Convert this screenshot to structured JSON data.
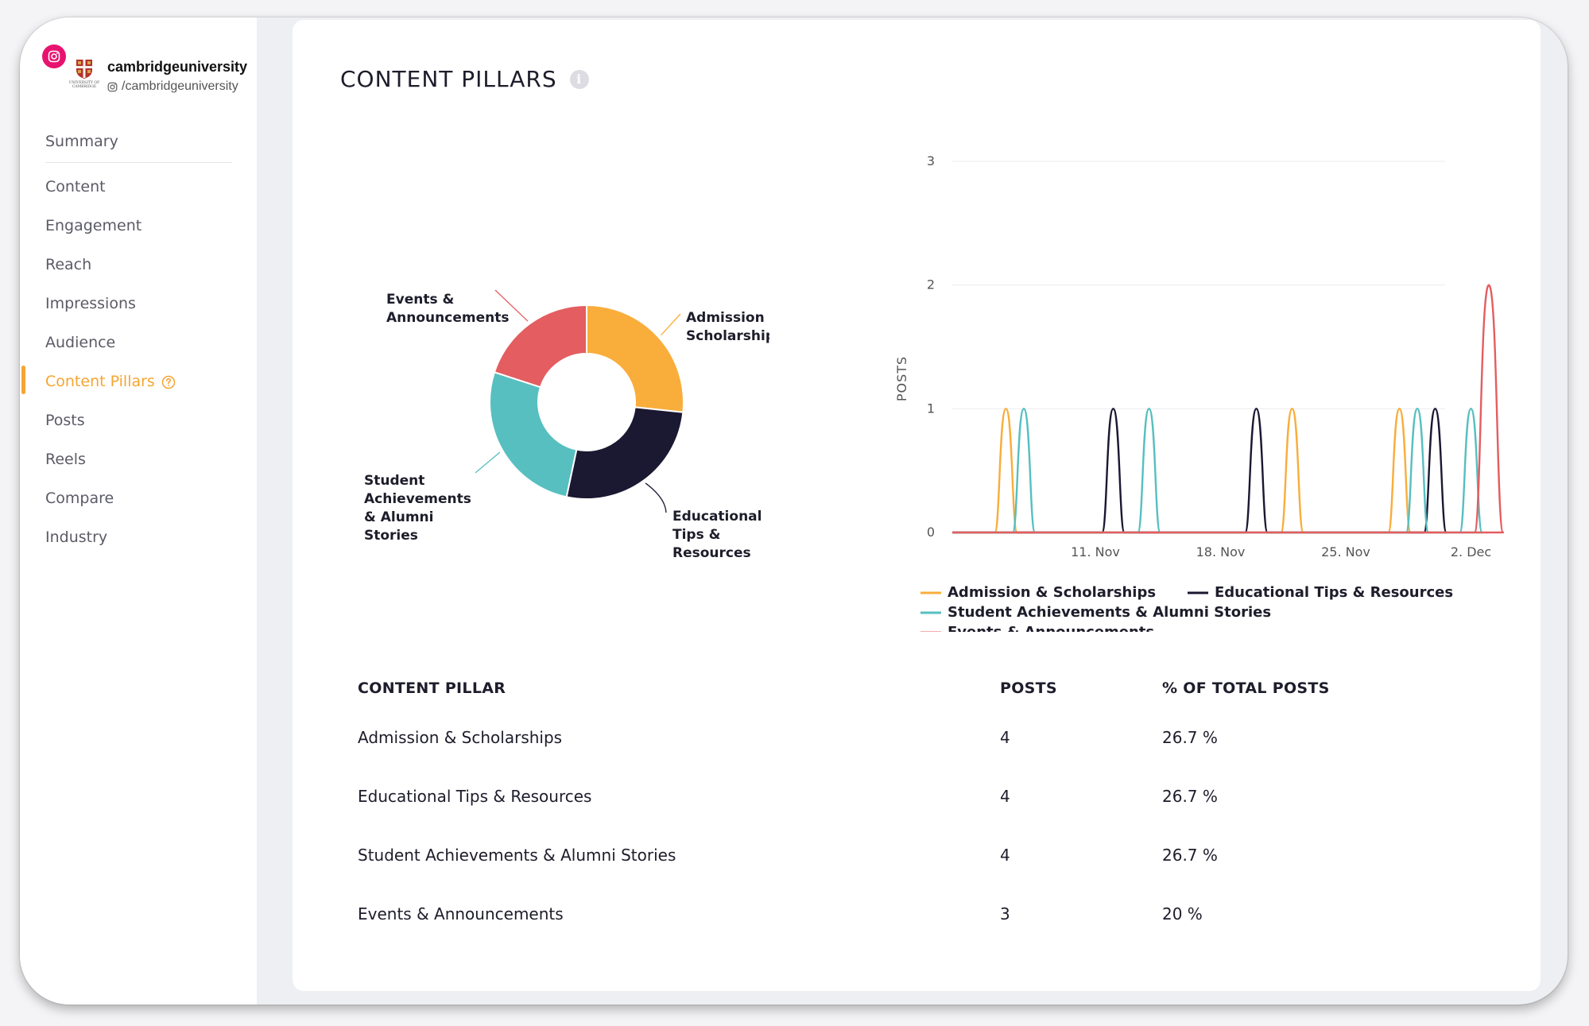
{
  "account": {
    "name": "cambridgeuniversity",
    "handle": "/cambridgeuniversity",
    "logo_text": "UNIVERSITY OF CAMBRIDGE"
  },
  "sidebar": {
    "items": [
      {
        "label": "Summary"
      },
      {
        "label": "Content"
      },
      {
        "label": "Engagement"
      },
      {
        "label": "Reach"
      },
      {
        "label": "Impressions"
      },
      {
        "label": "Audience"
      },
      {
        "label": "Content Pillars",
        "active": true
      },
      {
        "label": "Posts"
      },
      {
        "label": "Reels"
      },
      {
        "label": "Compare"
      },
      {
        "label": "Industry"
      }
    ]
  },
  "panel": {
    "title": "CONTENT PILLARS"
  },
  "colors": {
    "admission": "#f9ad3b",
    "educational": "#1b1832",
    "student": "#57bfc0",
    "events": "#e45d60",
    "accent": "#f6a531"
  },
  "chart_data": [
    {
      "type": "pie",
      "donut": true,
      "slices": [
        {
          "label": "Admission & Scholarships",
          "lines": [
            "Admission &",
            "Scholarships"
          ],
          "value": 4
        },
        {
          "label": "Educational Tips & Resources",
          "lines": [
            "Educational",
            "Tips &",
            "Resources"
          ],
          "value": 4
        },
        {
          "label": "Student Achievements & Alumni Stories",
          "lines": [
            "Student",
            "Achievements",
            "& Alumni",
            "Stories"
          ],
          "value": 4
        },
        {
          "label": "Events & Announcements",
          "lines": [
            "Events &",
            "Announcements"
          ],
          "value": 3
        }
      ]
    },
    {
      "type": "line",
      "ylabel": "POSTS",
      "ylim": [
        0,
        3
      ],
      "yticks": [
        "0",
        "1",
        "2",
        "3"
      ],
      "xticks": [
        "11. Nov",
        "18. Nov",
        "25. Nov",
        "2. Dec"
      ],
      "grid": true,
      "legend": "bottom",
      "series": [
        {
          "name": "Admission & Scholarships",
          "peaks": [
            [
              "2024-11-06",
              1
            ],
            [
              "2024-11-22",
              1
            ],
            [
              "2024-11-28",
              1
            ]
          ]
        },
        {
          "name": "Educational Tips & Resources",
          "peaks": [
            [
              "2024-11-12",
              1
            ],
            [
              "2024-11-20",
              1
            ],
            [
              "2024-11-30",
              1
            ]
          ]
        },
        {
          "name": "Student Achievements & Alumni Stories",
          "peaks": [
            [
              "2024-11-07",
              1
            ],
            [
              "2024-11-14",
              1
            ],
            [
              "2024-11-29",
              1
            ],
            [
              "2024-12-02",
              1
            ]
          ]
        },
        {
          "name": "Events & Announcements",
          "peaks": [
            [
              "2024-12-03",
              2
            ]
          ]
        }
      ]
    }
  ],
  "table": {
    "headers": [
      "CONTENT PILLAR",
      "POSTS",
      "% OF TOTAL POSTS"
    ],
    "rows": [
      {
        "pillar": "Admission & Scholarships",
        "posts": "4",
        "pct": "26.7 %"
      },
      {
        "pillar": "Educational Tips & Resources",
        "posts": "4",
        "pct": "26.7 %"
      },
      {
        "pillar": "Student Achievements & Alumni Stories",
        "posts": "4",
        "pct": "26.7 %"
      },
      {
        "pillar": "Events & Announcements",
        "posts": "3",
        "pct": "20 %"
      }
    ]
  }
}
